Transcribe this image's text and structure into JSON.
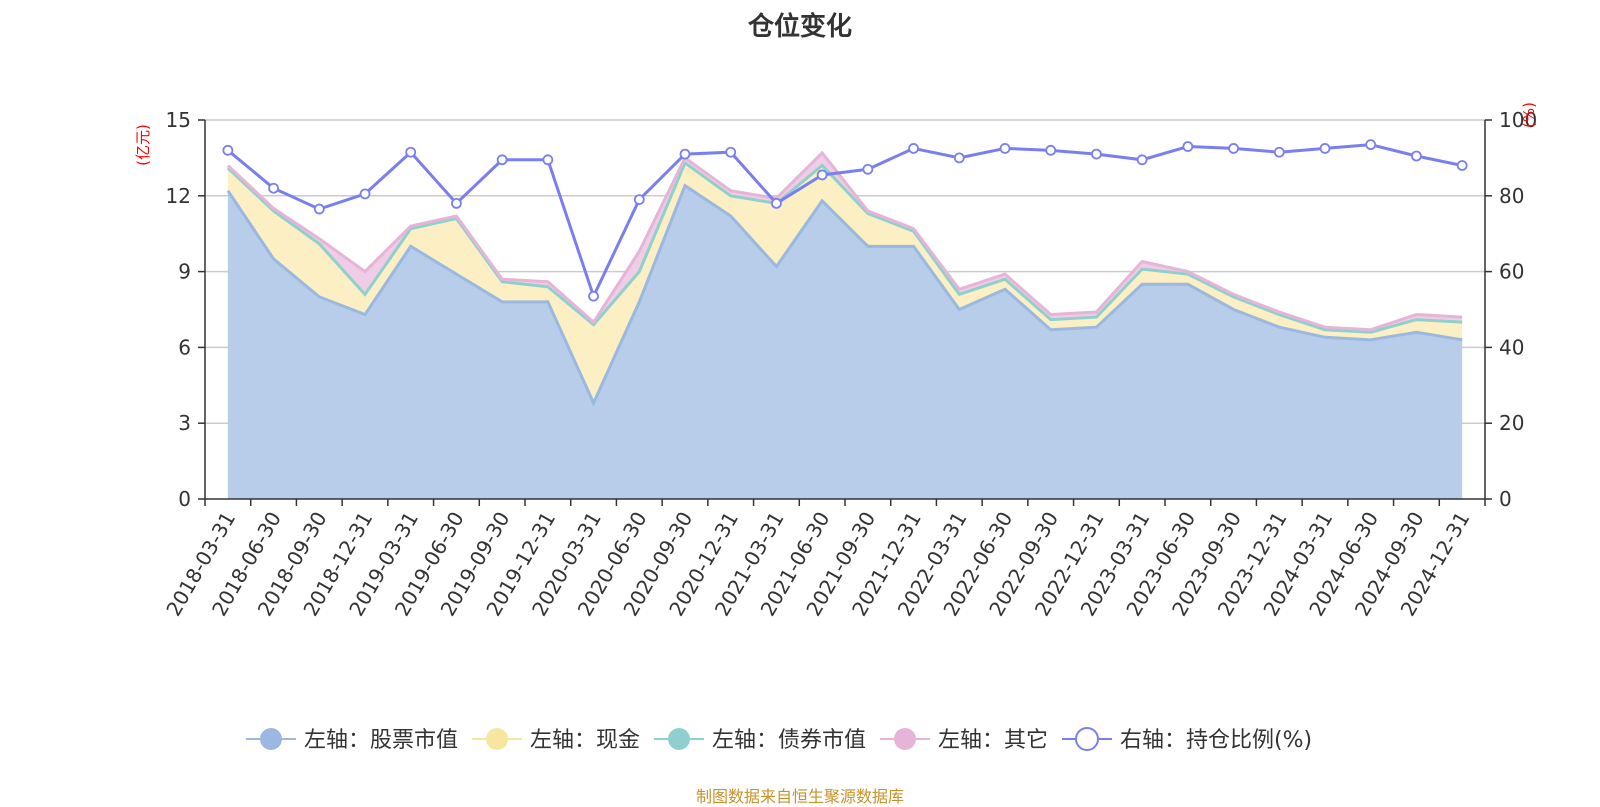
{
  "chart_data": {
    "type": "area",
    "title": "仓位变化",
    "left_axis_unit": "(亿元)",
    "right_axis_unit": "(%)",
    "source": "制图数据来自恒生聚源数据库",
    "left_ylim": [
      0,
      15
    ],
    "left_yticks": [
      0,
      3,
      6,
      9,
      12,
      15
    ],
    "right_ylim": [
      0,
      100
    ],
    "right_yticks": [
      0,
      20,
      40,
      60,
      80,
      100
    ],
    "grid": true,
    "legend_position": "bottom",
    "x": [
      "2018-03-31",
      "2018-06-30",
      "2018-09-30",
      "2018-12-31",
      "2019-03-31",
      "2019-06-30",
      "2019-09-30",
      "2019-12-31",
      "2020-03-31",
      "2020-06-30",
      "2020-09-30",
      "2020-12-31",
      "2021-03-31",
      "2021-06-30",
      "2021-09-30",
      "2021-12-31",
      "2022-03-31",
      "2022-06-30",
      "2022-09-30",
      "2022-12-31",
      "2023-03-31",
      "2023-06-30",
      "2023-09-30",
      "2023-12-31",
      "2024-03-31",
      "2024-06-30",
      "2024-09-30",
      "2024-12-31"
    ],
    "series": [
      {
        "name": "左轴：股票市值",
        "axis": "left",
        "stacked": true,
        "color": "#9bb8e0",
        "fill": "#b8cdea",
        "values": [
          12.2,
          9.5,
          8.0,
          7.3,
          10.0,
          8.9,
          7.8,
          7.8,
          3.8,
          7.8,
          12.4,
          11.2,
          9.2,
          11.8,
          10.0,
          10.0,
          7.5,
          8.3,
          6.7,
          6.8,
          8.5,
          8.5,
          7.5,
          6.8,
          6.4,
          6.3,
          6.6,
          6.3
        ]
      },
      {
        "name": "左轴：现金",
        "axis": "left",
        "stacked": true,
        "color": "#f7e6a0",
        "fill": "#fbefc3",
        "values": [
          0.9,
          1.9,
          2.1,
          0.8,
          0.7,
          2.2,
          0.8,
          0.6,
          3.1,
          1.2,
          0.9,
          0.8,
          2.5,
          1.4,
          1.3,
          0.6,
          0.6,
          0.4,
          0.4,
          0.4,
          0.6,
          0.4,
          0.5,
          0.5,
          0.3,
          0.3,
          0.5,
          0.7
        ]
      },
      {
        "name": "左轴：债券市值",
        "axis": "left",
        "stacked": true,
        "color": "#8fd0cf",
        "fill": "#b5e0df",
        "values": [
          0,
          0,
          0,
          0,
          0,
          0,
          0,
          0,
          0,
          0,
          0,
          0,
          0,
          0,
          0,
          0,
          0,
          0,
          0,
          0,
          0,
          0,
          0,
          0,
          0,
          0,
          0,
          0
        ]
      },
      {
        "name": "左轴：其它",
        "axis": "left",
        "stacked": true,
        "color": "#e6b4d8",
        "fill": "#efcde6",
        "values": [
          0.1,
          0.1,
          0.2,
          0.9,
          0.1,
          0.1,
          0.1,
          0.2,
          0.1,
          0.8,
          0.2,
          0.2,
          0.2,
          0.5,
          0.1,
          0.1,
          0.2,
          0.2,
          0.2,
          0.2,
          0.3,
          0.1,
          0.1,
          0.1,
          0.1,
          0.1,
          0.2,
          0.2
        ]
      },
      {
        "name": "右轴：持仓比例(%)",
        "axis": "right",
        "stacked": false,
        "color": "#7a7ff0",
        "values": [
          92.0,
          82.0,
          76.5,
          80.5,
          91.5,
          78.0,
          89.5,
          89.5,
          53.5,
          79.0,
          91.0,
          91.5,
          78.0,
          85.5,
          87.0,
          92.5,
          90.0,
          92.5,
          92.0,
          91.0,
          89.5,
          93.0,
          92.5,
          91.5,
          92.5,
          93.5,
          90.5,
          88.0
        ]
      }
    ]
  }
}
